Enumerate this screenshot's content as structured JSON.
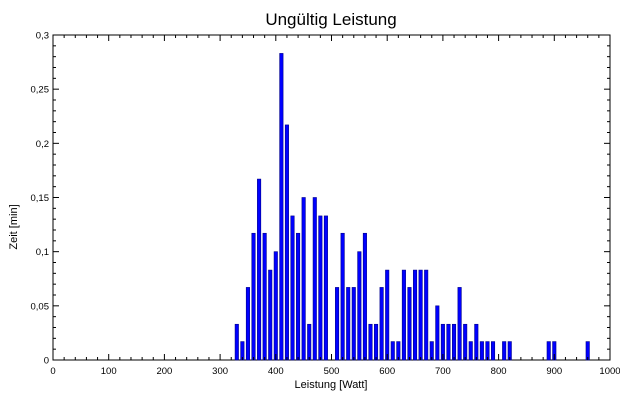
{
  "chart_data": {
    "type": "bar",
    "title": "Ungültig Leistung",
    "xlabel": "Leistung [Watt]",
    "ylabel": "Zeit [min]",
    "xlim": [
      0,
      1000
    ],
    "ylim": [
      0,
      0.3
    ],
    "grid": false,
    "bar_color": "#0000ff",
    "bar_edge_color": "#00008b",
    "x_ticks": [
      0,
      100,
      200,
      300,
      400,
      500,
      600,
      700,
      800,
      900,
      1000
    ],
    "x_tick_labels": [
      "0",
      "100",
      "200",
      "300",
      "400",
      "500",
      "600",
      "700",
      "800",
      "900",
      "1000"
    ],
    "y_ticks": [
      0,
      0.05,
      0.1,
      0.15,
      0.2,
      0.25,
      0.3
    ],
    "y_tick_labels": [
      "0",
      "0,05",
      "0,1",
      "0,15",
      "0,2",
      "0,25",
      "0,3"
    ],
    "x": [
      330,
      340,
      350,
      360,
      370,
      380,
      390,
      400,
      410,
      420,
      430,
      440,
      450,
      460,
      470,
      480,
      490,
      500,
      510,
      520,
      530,
      540,
      550,
      560,
      570,
      580,
      590,
      600,
      610,
      620,
      630,
      640,
      650,
      660,
      670,
      680,
      690,
      700,
      710,
      720,
      730,
      740,
      750,
      760,
      770,
      780,
      790,
      800,
      810,
      820,
      830,
      840,
      850,
      860,
      870,
      880,
      890,
      900,
      910,
      920,
      930,
      940,
      950,
      960
    ],
    "values": [
      0.033,
      0.017,
      0.067,
      0.117,
      0.167,
      0.117,
      0.083,
      0.1,
      0.283,
      0.217,
      0.133,
      0.117,
      0.15,
      0.033,
      0.15,
      0.133,
      0.133,
      0,
      0.067,
      0.117,
      0.067,
      0.067,
      0.1,
      0.117,
      0.033,
      0.033,
      0.067,
      0.083,
      0.017,
      0.017,
      0.083,
      0.067,
      0.083,
      0.083,
      0.083,
      0.017,
      0.05,
      0.033,
      0.033,
      0.033,
      0.067,
      0.033,
      0.017,
      0.033,
      0.017,
      0.017,
      0.017,
      0,
      0.017,
      0.017,
      0,
      0,
      0,
      0,
      0,
      0,
      0.017,
      0.017,
      0,
      0,
      0,
      0,
      0,
      0.017
    ]
  }
}
